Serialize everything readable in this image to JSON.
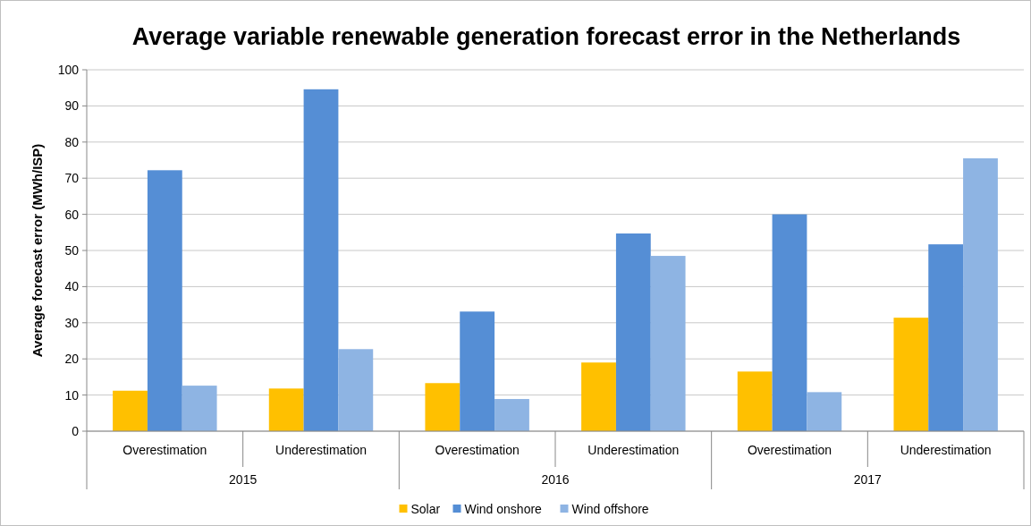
{
  "chart_data": {
    "type": "bar",
    "title": "Average variable renewable generation forecast error in the Netherlands",
    "ylabel": "Average forecast error (MWh/ISP)",
    "categories": [
      "Overestimation",
      "Underestimation",
      "Overestimation",
      "Underestimation",
      "Overestimation",
      "Underestimation"
    ],
    "annotations": [
      "2015",
      "2016",
      "2017"
    ],
    "series": [
      {
        "name": "Solar",
        "color": "#ffc000",
        "values": [
          11.2,
          11.8,
          13.3,
          19.0,
          16.5,
          31.4
        ]
      },
      {
        "name": "Wind onshore",
        "color": "#558ed5",
        "values": [
          72.2,
          94.6,
          33.1,
          54.7,
          60.0,
          51.7
        ]
      },
      {
        "name": "Wind offshore",
        "color": "#8eb4e3",
        "values": [
          12.6,
          22.7,
          8.9,
          48.5,
          10.8,
          75.5
        ]
      }
    ],
    "ylim": [
      0,
      100
    ],
    "yticks": [
      0,
      10,
      20,
      30,
      40,
      50,
      60,
      70,
      80,
      90,
      100
    ],
    "grid": "y",
    "legend": "bottom"
  }
}
